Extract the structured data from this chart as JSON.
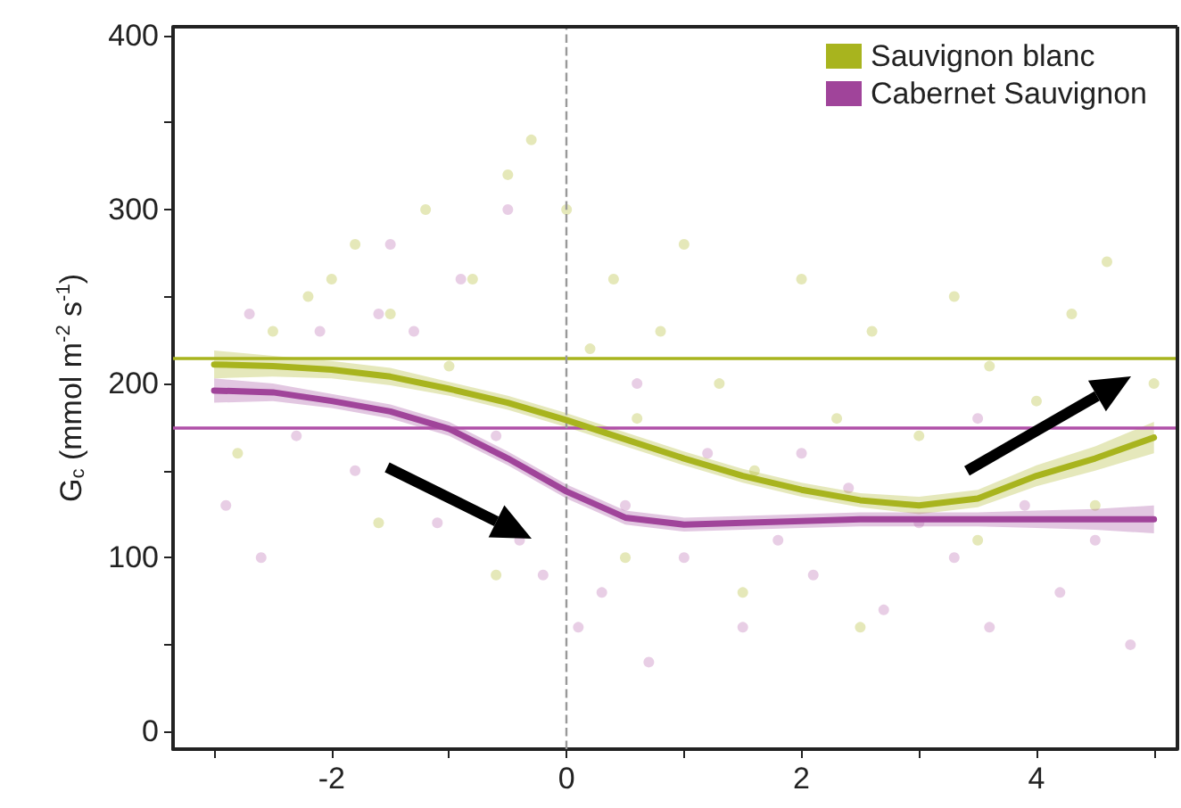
{
  "chart_data": {
    "type": "line",
    "ylabel": "G$_{c}$ (mmol m$^{-2}$ s$^{-1}$)",
    "xlim": [
      -3.35,
      5.2
    ],
    "xticks": [
      {
        "value": -3,
        "label": null
      },
      -2,
      {
        "value": -1,
        "label": null
      },
      0,
      {
        "value": 1,
        "label": null
      },
      2,
      {
        "value": 3,
        "label": null
      },
      4,
      {
        "value": 5,
        "label": null
      }
    ],
    "ylim": [
      -10,
      405
    ],
    "yticks": [
      0,
      {
        "value": 50,
        "label": null
      },
      100,
      {
        "value": 150,
        "label": null
      },
      200,
      {
        "value": 250,
        "label": null
      },
      300,
      {
        "value": 350,
        "label": null
      },
      400
    ],
    "grid": false,
    "legend": "top right",
    "series": [
      {
        "type": "scatter",
        "color": "#dfe2a8",
        "x": [
          -2.8,
          -2.5,
          -2.2,
          -2,
          -1.8,
          -1.5,
          -1.2,
          -1,
          -0.8,
          -0.5,
          -0.3,
          0,
          0.2,
          0.4,
          0.6,
          0.8,
          1,
          1.3,
          1.6,
          2,
          2.3,
          2.6,
          3,
          3.3,
          3.6,
          4,
          4.3,
          4.6,
          5,
          -1.6,
          -0.6,
          0.5,
          1.5,
          2.5,
          3.5,
          4.5
        ],
        "values": [
          160,
          230,
          250,
          260,
          280,
          240,
          300,
          210,
          260,
          320,
          340,
          300,
          220,
          260,
          180,
          230,
          280,
          200,
          150,
          260,
          180,
          230,
          170,
          250,
          210,
          190,
          240,
          270,
          200,
          120,
          90,
          100,
          80,
          60,
          110,
          130
        ]
      },
      {
        "type": "scatter",
        "color": "#e2c2df",
        "x": [
          -2.9,
          -2.6,
          -2.3,
          -2.1,
          -1.8,
          -1.6,
          -1.3,
          -1.1,
          -0.9,
          -0.6,
          -0.4,
          -0.2,
          0.1,
          0.3,
          0.5,
          0.7,
          1,
          1.2,
          1.5,
          1.8,
          2.1,
          2.4,
          2.7,
          3,
          3.3,
          3.6,
          3.9,
          4.2,
          4.5,
          4.8,
          -2.7,
          -1.5,
          -0.5,
          0.6,
          2,
          3.5
        ],
        "values": [
          130,
          100,
          170,
          230,
          150,
          240,
          230,
          120,
          260,
          170,
          110,
          90,
          60,
          80,
          130,
          40,
          100,
          160,
          60,
          110,
          90,
          140,
          70,
          120,
          100,
          60,
          130,
          80,
          110,
          50,
          240,
          280,
          300,
          200,
          160,
          180
        ]
      },
      {
        "name": "Sauvignon blanc",
        "color": "#a8b41e",
        "x": [
          -3,
          -2.5,
          -2,
          -1.5,
          -1,
          -0.5,
          0,
          0.5,
          1,
          1.5,
          2,
          2.5,
          3,
          3.5,
          4,
          4.5,
          5
        ],
        "values": [
          211,
          210,
          208,
          204,
          197,
          189,
          179,
          168,
          157,
          147,
          139,
          133,
          130,
          134,
          147,
          157,
          169
        ],
        "lower": [
          203,
          204,
          203,
          199,
          193,
          185,
          175,
          164,
          153,
          143,
          135,
          129,
          125,
          129,
          141,
          150,
          160
        ],
        "upper": [
          219,
          216,
          213,
          209,
          201,
          193,
          183,
          172,
          161,
          151,
          143,
          137,
          135,
          139,
          153,
          164,
          178
        ]
      },
      {
        "name": "Cabernet Sauvignon",
        "color": "#a0449a",
        "x": [
          -3,
          -2.5,
          -2,
          -1.5,
          -1,
          -0.5,
          0,
          0.5,
          1,
          1.5,
          2,
          2.5,
          3,
          3.5,
          4,
          4.5,
          5
        ],
        "values": [
          196,
          195,
          190,
          184,
          174,
          157,
          138,
          123,
          119,
          120,
          121,
          122,
          122,
          122,
          122,
          122,
          122
        ],
        "lower": [
          189,
          190,
          186,
          180,
          170,
          153,
          134,
          119,
          115,
          116,
          117,
          118,
          118,
          118,
          117,
          116,
          114
        ],
        "upper": [
          203,
          200,
          194,
          188,
          178,
          161,
          142,
          127,
          123,
          124,
          125,
          126,
          126,
          126,
          127,
          128,
          130
        ]
      }
    ],
    "ref_lines": [
      {
        "axis": "y",
        "value": 215,
        "color": "#a8b41e",
        "line_style": "solid"
      },
      {
        "axis": "y",
        "value": 175,
        "color": "#b050a8",
        "line_style": "solid"
      },
      {
        "axis": "x",
        "value": 0,
        "color": "#999999",
        "line_style": "dashed"
      }
    ]
  }
}
